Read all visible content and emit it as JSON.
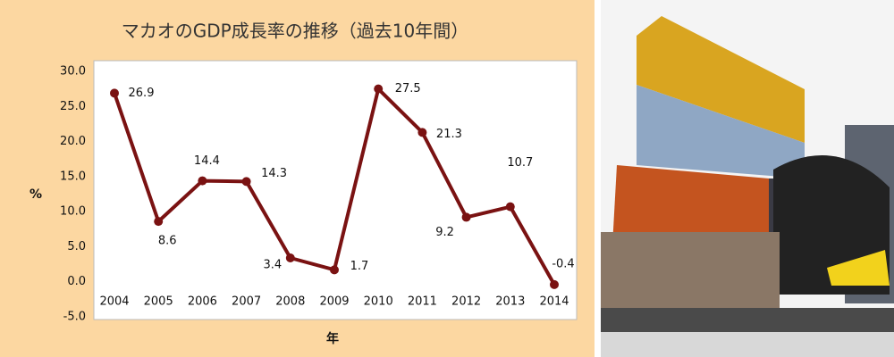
{
  "chart_data": {
    "type": "line",
    "title": "マカオのGDP成長率の推移（過去10年間）",
    "y_label": "%",
    "x_label": "年",
    "categories": [
      "2004",
      "2005",
      "2006",
      "2007",
      "2008",
      "2009",
      "2010",
      "2011",
      "2012",
      "2013",
      "2014"
    ],
    "values": [
      26.9,
      8.6,
      14.4,
      14.3,
      3.4,
      1.7,
      27.5,
      21.3,
      9.2,
      10.7,
      -0.4
    ],
    "color": "#7a1212",
    "ylim": [
      -5,
      30
    ],
    "yticks": [
      {
        "value": -5,
        "label": "-5.0"
      },
      {
        "value": 0,
        "label": "0.0"
      },
      {
        "value": 5,
        "label": "5.0"
      },
      {
        "value": 10,
        "label": "10.0"
      },
      {
        "value": 15,
        "label": "15.0"
      },
      {
        "value": 20,
        "label": "20.0"
      },
      {
        "value": 25,
        "label": "25.0"
      },
      {
        "value": 30,
        "label": "30.0"
      }
    ],
    "grid": false
  }
}
